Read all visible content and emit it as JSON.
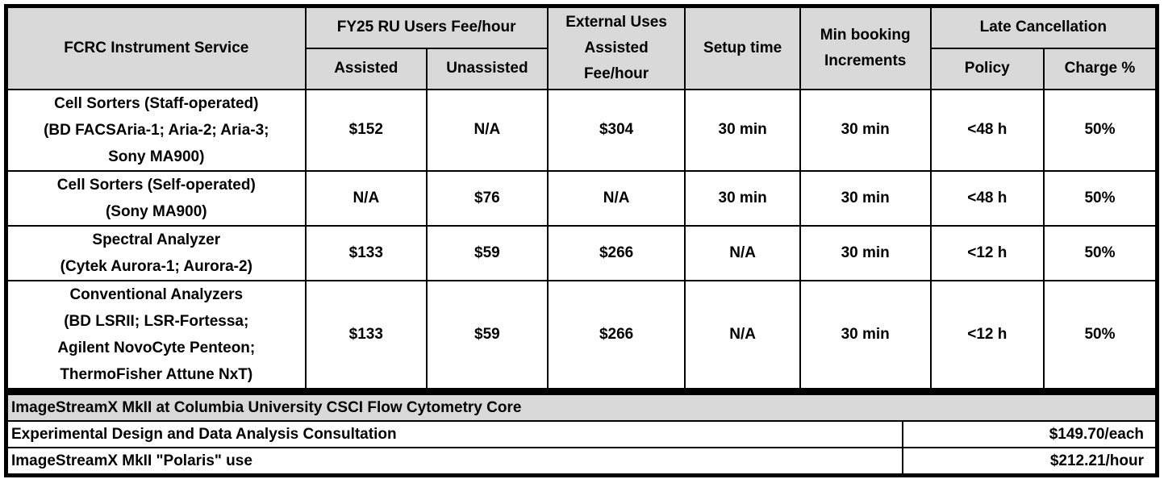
{
  "fee_table": {
    "headers": {
      "service": "FCRC Instrument Service",
      "ru_fee_group": "FY25 RU Users Fee/hour",
      "assisted": "Assisted",
      "unassisted": "Unassisted",
      "external": "External Uses Assisted Fee/hour",
      "setup": "Setup time",
      "min_booking": "Min booking Increments",
      "late_group": "Late Cancellation",
      "policy": "Policy",
      "charge": "Charge %"
    },
    "rows": [
      {
        "service_lines": [
          "Cell Sorters (Staff-operated)",
          "(BD FACSAria-1; Aria-2; Aria-3;",
          "Sony MA900)"
        ],
        "assisted": "$152",
        "unassisted": "N/A",
        "external": "$304",
        "setup": "30 min",
        "min_booking": "30 min",
        "policy": "<48 h",
        "charge": "50%"
      },
      {
        "service_lines": [
          "Cell Sorters (Self-operated)",
          "(Sony MA900)"
        ],
        "assisted": "N/A",
        "unassisted": "$76",
        "external": "N/A",
        "setup": "30 min",
        "min_booking": "30 min",
        "policy": "<48 h",
        "charge": "50%"
      },
      {
        "service_lines": [
          "Spectral Analyzer",
          "(Cytek Aurora-1; Aurora-2)"
        ],
        "assisted": "$133",
        "unassisted": "$59",
        "external": "$266",
        "setup": "N/A",
        "min_booking": "30 min",
        "policy": "<12 h",
        "charge": "50%"
      },
      {
        "service_lines": [
          "Conventional Analyzers",
          "(BD LSRII; LSR-Fortessa;",
          "Agilent NovoCyte Penteon;",
          "ThermoFisher Attune NxT)"
        ],
        "assisted": "$133",
        "unassisted": "$59",
        "external": "$266",
        "setup": "N/A",
        "min_booking": "30 min",
        "policy": "<12 h",
        "charge": "50%"
      }
    ]
  },
  "imagestream_table": {
    "title": "ImageStreamX MkII at Columbia University CSCI Flow Cytometry Core",
    "rows": [
      {
        "label": "Experimental Design and Data Analysis Consultation",
        "price": "$149.70/each"
      },
      {
        "label": "ImageStreamX MkII \"Polaris\" use",
        "price": "$212.21/hour"
      }
    ]
  },
  "colors": {
    "header_bg": "#d9d9d9",
    "border": "#000000"
  }
}
